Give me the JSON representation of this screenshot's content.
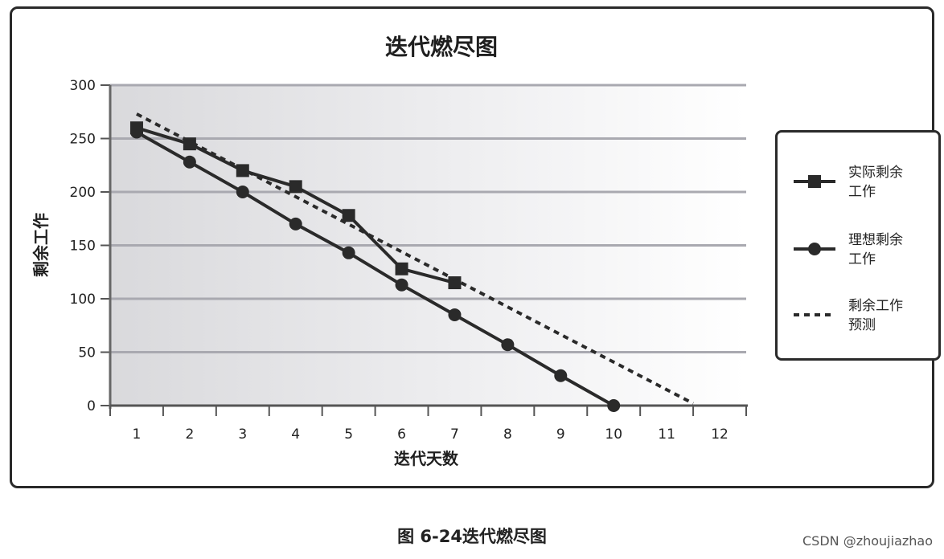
{
  "chart_data": {
    "type": "line",
    "title": "迭代燃尽图",
    "xlabel": "迭代天数",
    "ylabel": "剩余工作",
    "x": [
      1,
      2,
      3,
      4,
      5,
      6,
      7,
      8,
      9,
      10,
      11,
      12
    ],
    "x_tick_labels": [
      "1",
      "2",
      "3",
      "4",
      "5",
      "6",
      "7",
      "8",
      "9",
      "10",
      "11",
      "12"
    ],
    "y_tick_labels": [
      "0",
      "50",
      "100",
      "150",
      "200",
      "250",
      "300"
    ],
    "ylim": [
      0,
      300
    ],
    "xlim": [
      0.5,
      12.5
    ],
    "grid": "horizontal",
    "legend_position": "right",
    "series": [
      {
        "name": "实际剩余工作",
        "marker": "square",
        "style": "solid",
        "x": [
          1,
          2,
          3,
          4,
          5,
          6,
          7
        ],
        "values": [
          260,
          245,
          220,
          205,
          178,
          128,
          115
        ]
      },
      {
        "name": "理想剩余工作",
        "marker": "circle",
        "style": "solid",
        "x": [
          1,
          2,
          3,
          4,
          5,
          6,
          7,
          8,
          9,
          10
        ],
        "values": [
          256,
          228,
          200,
          170,
          143,
          113,
          85,
          57,
          28,
          0
        ]
      },
      {
        "name": "剩余工作预测",
        "marker": "none",
        "style": "dashed",
        "x": [
          1,
          11.5
        ],
        "values": [
          273,
          2
        ]
      }
    ]
  },
  "legend": {
    "items": [
      {
        "label_line1": "实际剩余",
        "label_line2": "工作"
      },
      {
        "label_line1": "理想剩余",
        "label_line2": "工作"
      },
      {
        "label_line1": "剩余工作",
        "label_line2": "预测"
      }
    ]
  },
  "caption": "图 6-24迭代燃尽图",
  "watermark": "CSDN @zhoujiazhao"
}
